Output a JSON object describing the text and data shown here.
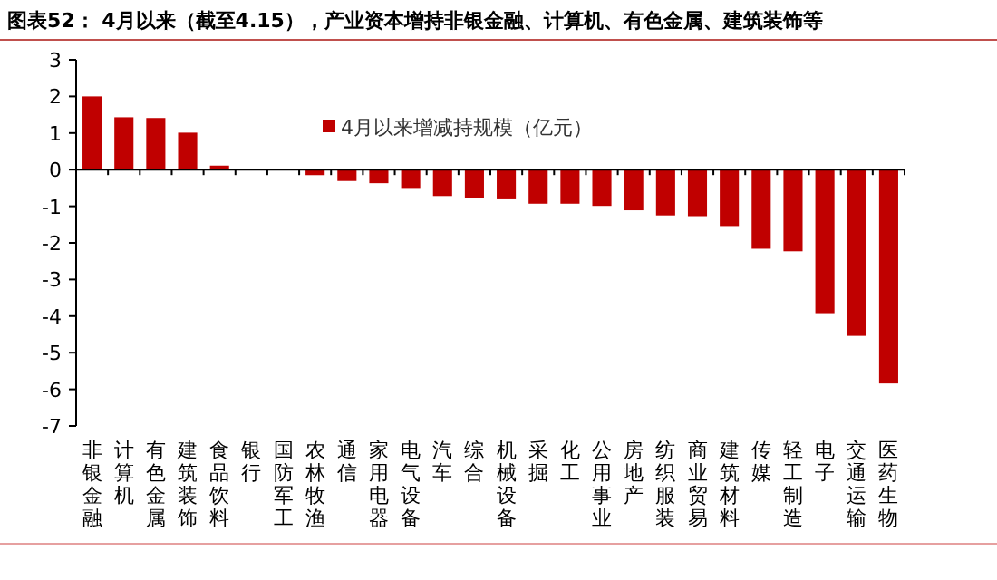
{
  "chart_data": {
    "type": "bar",
    "title": "图表52：  4月以来（截至4.15），产业资本增持非银金融、计算机、有色金属、建筑装饰等",
    "categories": [
      "非银金融",
      "计算机",
      "有色金属",
      "建筑装饰",
      "食品饮料",
      "银行",
      "国防军工",
      "农林牧渔",
      "通信",
      "家用电器",
      "电气设备",
      "汽车",
      "综合",
      "机械设备",
      "采掘",
      "化工",
      "公用事业",
      "房地产",
      "纺织服装",
      "商业贸易",
      "建筑材料",
      "传媒",
      "轻工制造",
      "电子",
      "交通运输",
      "医药生物"
    ],
    "series": [
      {
        "name": "4月以来增减持规模（亿元）",
        "color": "#c00000",
        "values": [
          2.0,
          1.43,
          1.41,
          1.01,
          0.11,
          0,
          0,
          -0.15,
          -0.31,
          -0.37,
          -0.5,
          -0.72,
          -0.78,
          -0.81,
          -0.93,
          -0.93,
          -0.99,
          -1.11,
          -1.25,
          -1.27,
          -1.54,
          -2.16,
          -2.23,
          -3.92,
          -4.54,
          -5.84
        ]
      }
    ],
    "ylim": [
      -7,
      3
    ],
    "yticks": [
      -7,
      -6,
      -5,
      -4,
      -3,
      -2,
      -1,
      0,
      1,
      2,
      3
    ],
    "legend": "top"
  }
}
